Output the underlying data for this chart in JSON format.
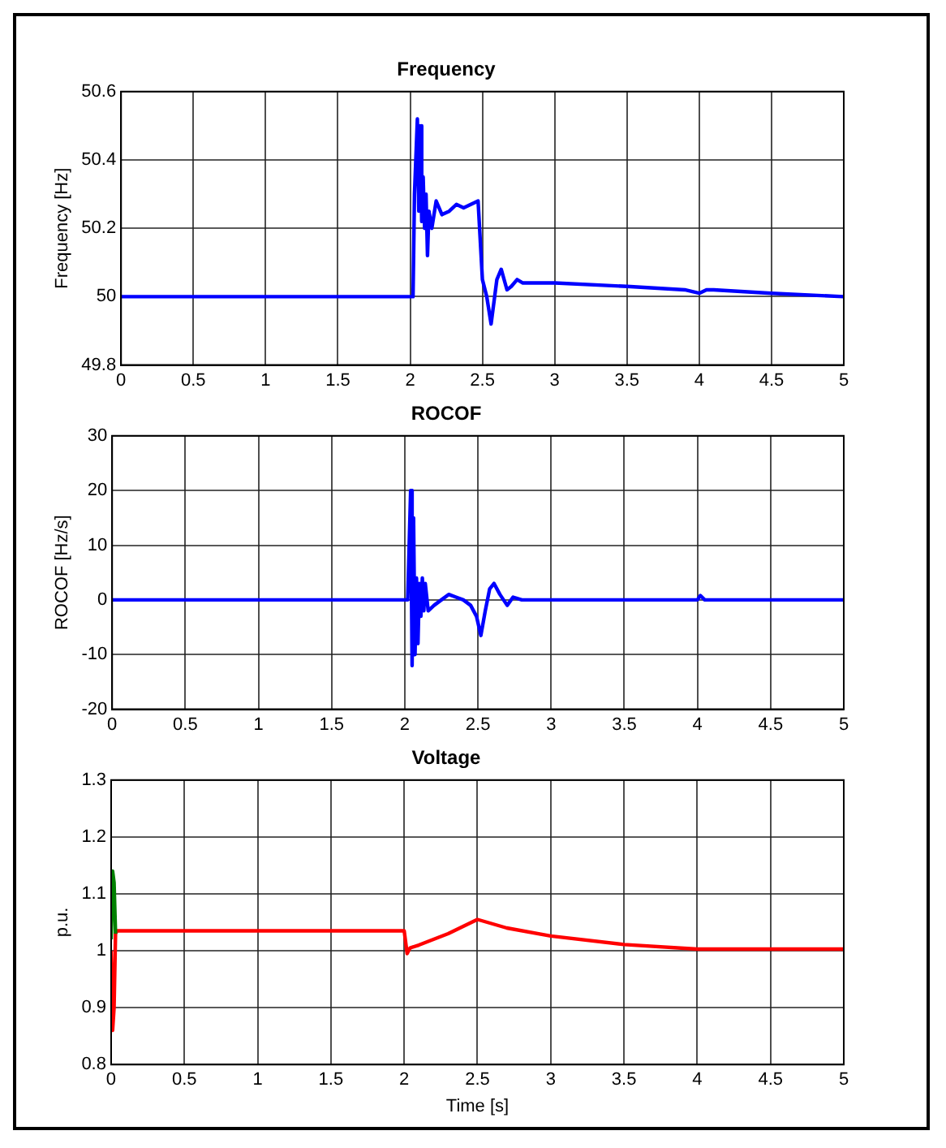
{
  "chart_data": [
    {
      "type": "line",
      "title": "Frequency",
      "ylabel": "Frequency [Hz]",
      "xlim": [
        0,
        5
      ],
      "xticks": [
        0,
        0.5,
        1,
        1.5,
        2,
        2.5,
        3,
        3.5,
        4,
        4.5,
        5
      ],
      "ylim": [
        49.8,
        50.6
      ],
      "yticks": [
        49.8,
        50,
        50.2,
        50.4,
        50.6
      ],
      "grid": true,
      "series": [
        {
          "color": "#0000ff",
          "x": [
            0,
            2.02,
            2.03,
            2.05,
            2.06,
            2.07,
            2.08,
            2.09,
            2.1,
            2.11,
            2.12,
            2.13,
            2.15,
            2.18,
            2.22,
            2.27,
            2.32,
            2.37,
            2.42,
            2.47,
            2.5,
            2.53,
            2.56,
            2.6,
            2.63,
            2.67,
            2.7,
            2.74,
            2.78,
            3,
            3.5,
            3.9,
            4,
            4.05,
            4.1,
            4.5,
            5
          ],
          "values": [
            50,
            50,
            50.3,
            50.52,
            50.25,
            50.5,
            50.22,
            50.35,
            50.2,
            50.3,
            50.12,
            50.25,
            50.2,
            50.28,
            50.24,
            50.25,
            50.27,
            50.26,
            50.27,
            50.28,
            50.05,
            50,
            49.92,
            50.05,
            50.08,
            50.02,
            50.03,
            50.05,
            50.04,
            50.04,
            50.03,
            50.02,
            50.01,
            50.02,
            50.02,
            50.01,
            50
          ]
        }
      ]
    },
    {
      "type": "line",
      "title": "ROCOF",
      "ylabel": "ROCOF [Hz/s]",
      "xlim": [
        0,
        5
      ],
      "xticks": [
        0,
        0.5,
        1,
        1.5,
        2,
        2.5,
        3,
        3.5,
        4,
        4.5,
        5
      ],
      "ylim": [
        -20,
        30
      ],
      "yticks": [
        -20,
        -10,
        0,
        10,
        20,
        30
      ],
      "grid": true,
      "series": [
        {
          "color": "#0000ff",
          "x": [
            0,
            2.02,
            2.03,
            2.04,
            2.05,
            2.06,
            2.07,
            2.08,
            2.09,
            2.1,
            2.11,
            2.12,
            2.13,
            2.14,
            2.16,
            2.2,
            2.25,
            2.3,
            2.35,
            2.4,
            2.45,
            2.49,
            2.52,
            2.55,
            2.58,
            2.61,
            2.65,
            2.7,
            2.74,
            2.8,
            3,
            4,
            4.02,
            4.05,
            5
          ],
          "values": [
            0,
            0,
            10,
            20,
            -12,
            15,
            -10,
            4,
            -8,
            3,
            -3,
            4,
            -2,
            3,
            -2,
            -1,
            0,
            1,
            0.5,
            0,
            -1,
            -3,
            -6.5,
            -2,
            2,
            3,
            1,
            -1,
            0.5,
            0,
            0,
            0,
            0.8,
            0,
            0
          ]
        }
      ]
    },
    {
      "type": "line",
      "title": "Voltage",
      "xlabel": "Time [s]",
      "ylabel": "p.u.",
      "xlim": [
        0,
        5
      ],
      "xticks": [
        0,
        0.5,
        1,
        1.5,
        2,
        2.5,
        3,
        3.5,
        4,
        4.5,
        5
      ],
      "ylim": [
        0.8,
        1.3
      ],
      "yticks": [
        0.8,
        0.9,
        1,
        1.1,
        1.2,
        1.3
      ],
      "grid": true,
      "series": [
        {
          "color": "#ff0000",
          "x": [
            0,
            0.01,
            0.02,
            0.03,
            0.04,
            2,
            2.02,
            2.04,
            2.1,
            2.3,
            2.5,
            2.7,
            3,
            3.5,
            4,
            4.5,
            5
          ],
          "values": [
            1.0,
            0.86,
            0.9,
            1.03,
            1.035,
            1.035,
            0.995,
            1.005,
            1.01,
            1.03,
            1.055,
            1.04,
            1.026,
            1.011,
            1.003,
            1.003,
            1.003
          ]
        },
        {
          "color": "#008000",
          "x": [
            0,
            0.01,
            0.02,
            0.03
          ],
          "values": [
            1.02,
            1.14,
            1.12,
            1.03
          ]
        }
      ]
    }
  ]
}
